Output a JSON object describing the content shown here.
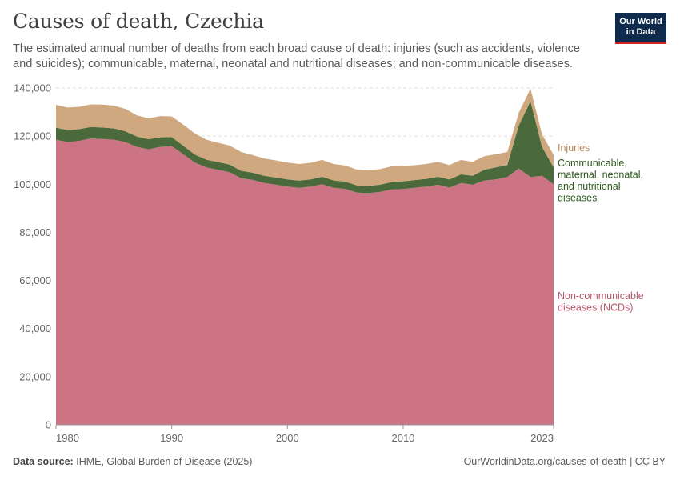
{
  "header": {
    "title": "Causes of death, Czechia",
    "subtitle": "The estimated annual number of deaths from each broad cause of death: injuries (such as accidents, violence and suicides); communicable, maternal, neonatal and nutritional diseases; and non-communicable diseases.",
    "logo_line1": "Our World",
    "logo_line2": "in Data"
  },
  "footer": {
    "source_label": "Data source:",
    "source_text": "IHME, Global Burden of Disease (2025)",
    "url": "OurWorldinData.org/causes-of-death | CC BY"
  },
  "chart_data": {
    "type": "area",
    "stacked": true,
    "title": "Causes of death, Czechia",
    "xlabel": "",
    "ylabel": "",
    "xlim": [
      1980,
      2023
    ],
    "ylim": [
      0,
      140000
    ],
    "yticks": [
      0,
      20000,
      40000,
      60000,
      80000,
      100000,
      120000,
      140000
    ],
    "ytick_labels": [
      "0",
      "20,000",
      "40,000",
      "60,000",
      "80,000",
      "100,000",
      "120,000",
      "140,000"
    ],
    "xtick_labels": [
      "1980",
      "1990",
      "2000",
      "2010",
      "2023"
    ],
    "xticks": [
      1980,
      1990,
      2000,
      2010,
      2023
    ],
    "grid": true,
    "x": [
      1980,
      1981,
      1982,
      1983,
      1984,
      1985,
      1986,
      1987,
      1988,
      1989,
      1990,
      1991,
      1992,
      1993,
      1994,
      1995,
      1996,
      1997,
      1998,
      1999,
      2000,
      2001,
      2002,
      2003,
      2004,
      2005,
      2006,
      2007,
      2008,
      2009,
      2010,
      2011,
      2012,
      2013,
      2014,
      2015,
      2016,
      2017,
      2018,
      2019,
      2020,
      2021,
      2022,
      2023
    ],
    "series": [
      {
        "name": "Non-communicable diseases (NCDs)",
        "label_lines": [
          "Non-communicable",
          "diseases (NCDs)"
        ],
        "color": "#cc7384",
        "values": [
          118500,
          117500,
          118000,
          119000,
          118800,
          118500,
          117500,
          115500,
          114500,
          115500,
          115800,
          112500,
          109000,
          107000,
          106000,
          105000,
          102500,
          101800,
          100500,
          99800,
          99000,
          98500,
          99000,
          100000,
          98500,
          98000,
          96500,
          96300,
          96800,
          97800,
          98000,
          98500,
          99000,
          99800,
          98600,
          100500,
          99800,
          101500,
          102000,
          103000,
          106500,
          103000,
          103500,
          100000
        ]
      },
      {
        "name": "Communicable, maternal, neonatal, and nutritional diseases",
        "label_lines": [
          "Communicable,",
          "maternal, neonatal,",
          "and nutritional",
          "diseases"
        ],
        "color": "#4b6a3c",
        "values": [
          5000,
          5000,
          4900,
          4800,
          4800,
          4700,
          4500,
          4300,
          4200,
          4000,
          3800,
          3500,
          3300,
          3200,
          3200,
          3200,
          3100,
          3000,
          3000,
          3000,
          3000,
          3000,
          3000,
          3100,
          3100,
          3100,
          3000,
          3000,
          3000,
          3100,
          3200,
          3200,
          3200,
          3300,
          3400,
          3600,
          3700,
          4500,
          5000,
          5000,
          18000,
          31500,
          12000,
          7000
        ]
      },
      {
        "name": "Injuries",
        "label_lines": [
          "Injuries"
        ],
        "color": "#cfa87f",
        "values": [
          9500,
          9400,
          9300,
          9400,
          9500,
          9500,
          9300,
          8800,
          8700,
          8800,
          8600,
          8800,
          8800,
          8300,
          8000,
          7900,
          7800,
          7300,
          7200,
          7100,
          7000,
          6900,
          6900,
          7000,
          6800,
          6700,
          6600,
          6500,
          6500,
          6500,
          6400,
          6200,
          6200,
          6200,
          6000,
          6000,
          5800,
          5600,
          5500,
          5400,
          5300,
          5200,
          5300,
          5200
        ]
      }
    ]
  }
}
